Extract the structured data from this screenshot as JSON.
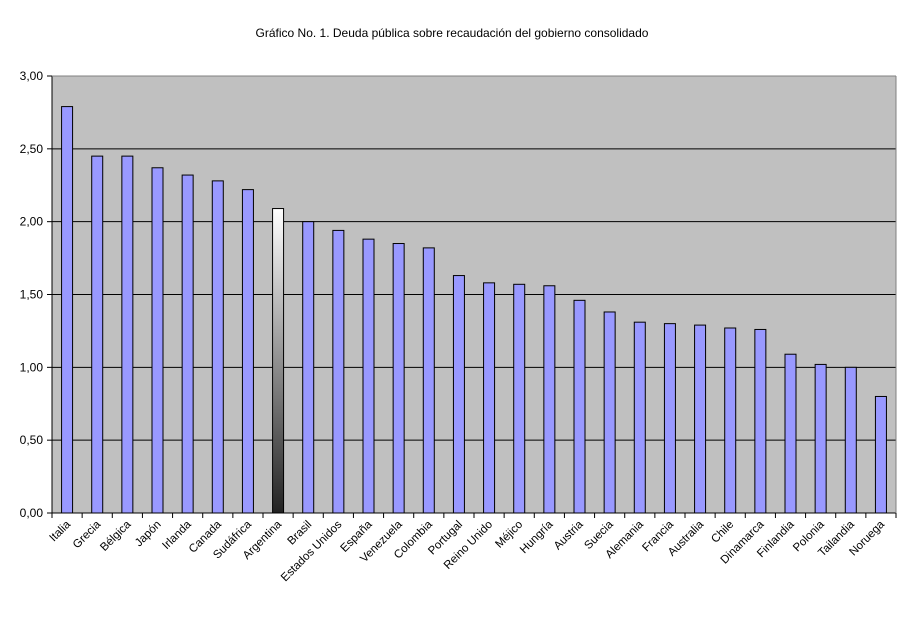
{
  "chart_data": {
    "type": "bar",
    "title": "Gráfico No. 1. Deuda pública sobre recaudación del gobierno consolidado",
    "xlabel": "",
    "ylabel": "",
    "ylim": [
      0,
      3
    ],
    "yticks": [
      "0,00",
      "0,50",
      "1,00",
      "1,50",
      "2,00",
      "2,50",
      "3,00"
    ],
    "grid": true,
    "legend": "none",
    "categories": [
      "Italia",
      "Grecia",
      "Bélgica",
      "Japón",
      "Irlanda",
      "Canada",
      "Sudáfrica",
      "Argentina",
      "Brasil",
      "Estados Unidos",
      "España",
      "Venezuela",
      "Colombia",
      "Portugal",
      "Reino Unido",
      "Méjico",
      "Hungría",
      "Austria",
      "Suecia",
      "Alemania",
      "Francia",
      "Australia",
      "Chile",
      "Dinamarca",
      "Finlandia",
      "Polonia",
      "Tailandia",
      "Noruega"
    ],
    "values": [
      2.79,
      2.45,
      2.45,
      2.37,
      2.32,
      2.28,
      2.22,
      2.09,
      2.0,
      1.94,
      1.88,
      1.85,
      1.82,
      1.63,
      1.58,
      1.57,
      1.56,
      1.46,
      1.38,
      1.31,
      1.3,
      1.29,
      1.27,
      1.26,
      1.09,
      1.02,
      1.0,
      0.8
    ],
    "highlight_category": "Argentina",
    "colors": {
      "plot_background": "#c0c0c0",
      "bar_fill": "#9999ff",
      "highlight_fill_top": "#ffffff",
      "highlight_fill_bottom": "#222222",
      "gridline": "#000000"
    }
  }
}
